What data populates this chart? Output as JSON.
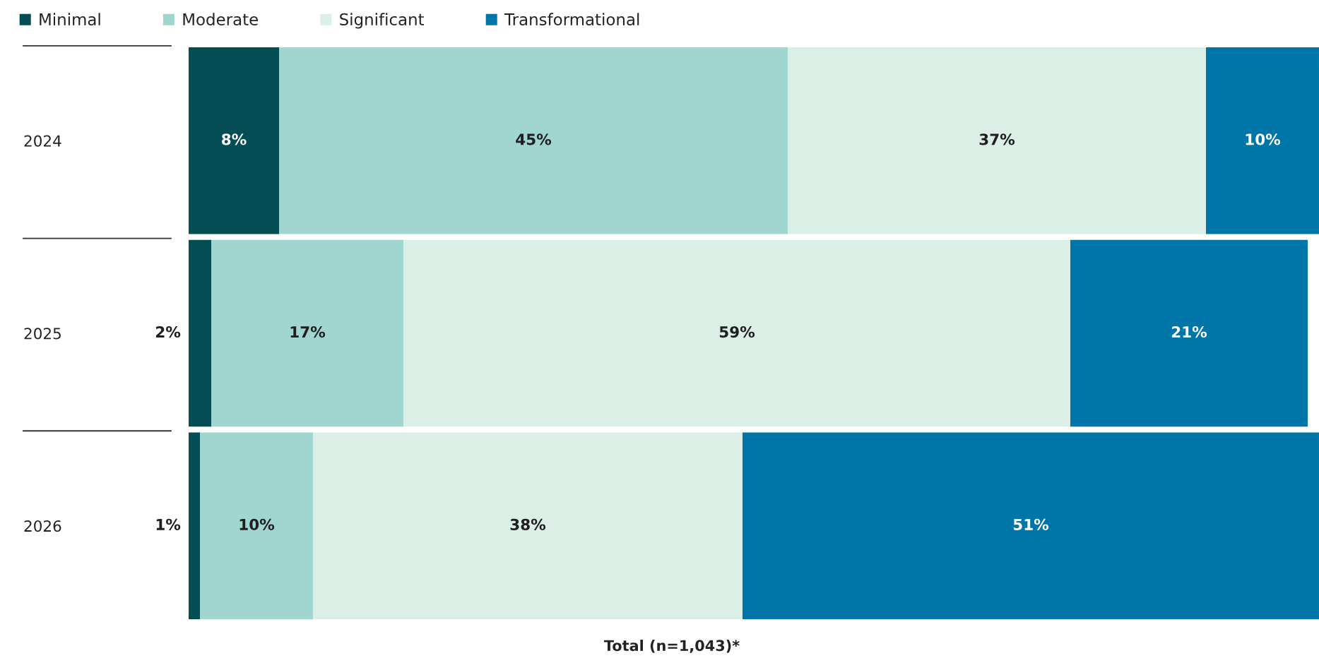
{
  "chart_data": {
    "type": "bar",
    "orientation": "horizontal",
    "stacked": true,
    "categories": [
      "2024",
      "2025",
      "2026"
    ],
    "series": [
      {
        "name": "Minimal",
        "color": "#044d55",
        "values": [
          8,
          2,
          1
        ],
        "value_labels": [
          "8%",
          "2%",
          "1%"
        ]
      },
      {
        "name": "Moderate",
        "color": "#a0d5d0",
        "values": [
          45,
          17,
          10
        ],
        "value_labels": [
          "45%",
          "17%",
          "10%"
        ]
      },
      {
        "name": "Significant",
        "color": "#dcefe6",
        "values": [
          37,
          59,
          38
        ],
        "value_labels": [
          "37%",
          "59%",
          "38%"
        ]
      },
      {
        "name": "Transformational",
        "color": "#0076a8",
        "values": [
          10,
          21,
          51
        ],
        "value_labels": [
          "10%",
          "21%",
          "51%"
        ]
      }
    ],
    "xlim": [
      0,
      100
    ],
    "xlabel": "Total (n=1,043)*",
    "legend": "top left",
    "tick_labels": "y"
  }
}
